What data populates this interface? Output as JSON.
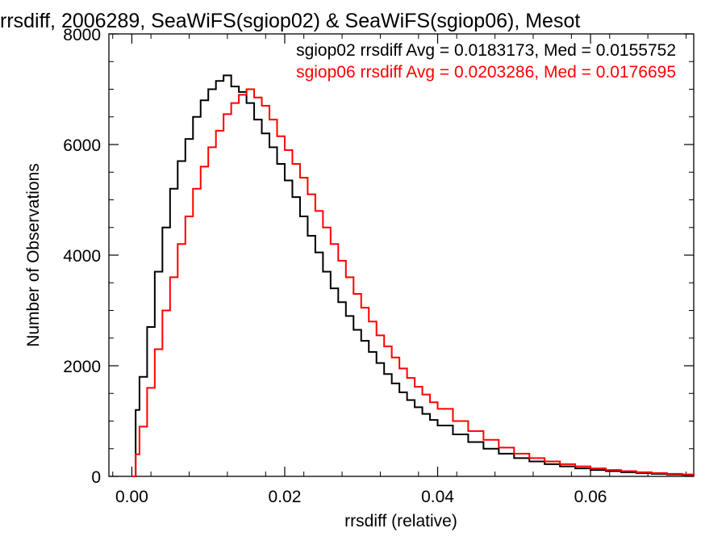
{
  "chart_data": {
    "type": "histogram-step",
    "title": "rrsdiff, 2006289, SeaWiFS(sgiop02) & SeaWiFS(sgiop06), Mesot",
    "xlabel": "rrsdiff (relative)",
    "ylabel": "Number of Observations",
    "xlim": [
      -0.003,
      0.0735
    ],
    "ylim": [
      0,
      8000
    ],
    "x_ticks": [
      0.0,
      0.02,
      0.04,
      0.06
    ],
    "x_tick_labels": [
      "0.00",
      "0.02",
      "0.04",
      "0.06"
    ],
    "y_ticks": [
      0,
      2000,
      4000,
      6000,
      8000
    ],
    "y_tick_labels": [
      "0",
      "2000",
      "4000",
      "6000",
      "8000"
    ],
    "grid": false,
    "legend_position": "top-right",
    "series": [
      {
        "name": "sgiop02",
        "color": "#000000",
        "annotation": "sgiop02 rrsdiff Avg = 0.0183173, Med = 0.0155752",
        "points": [
          [
            0.0,
            0
          ],
          [
            0.0005,
            1200
          ],
          [
            0.001,
            1800
          ],
          [
            0.002,
            2700
          ],
          [
            0.003,
            3700
          ],
          [
            0.004,
            4500
          ],
          [
            0.005,
            5200
          ],
          [
            0.006,
            5700
          ],
          [
            0.007,
            6100
          ],
          [
            0.008,
            6500
          ],
          [
            0.009,
            6800
          ],
          [
            0.01,
            7000
          ],
          [
            0.011,
            7150
          ],
          [
            0.012,
            7250
          ],
          [
            0.013,
            7050
          ],
          [
            0.014,
            6950
          ],
          [
            0.015,
            6750
          ],
          [
            0.016,
            6450
          ],
          [
            0.017,
            6200
          ],
          [
            0.018,
            5950
          ],
          [
            0.019,
            5650
          ],
          [
            0.02,
            5350
          ],
          [
            0.021,
            5050
          ],
          [
            0.022,
            4700
          ],
          [
            0.023,
            4350
          ],
          [
            0.024,
            4050
          ],
          [
            0.025,
            3700
          ],
          [
            0.026,
            3400
          ],
          [
            0.027,
            3150
          ],
          [
            0.028,
            2900
          ],
          [
            0.029,
            2650
          ],
          [
            0.03,
            2450
          ],
          [
            0.031,
            2250
          ],
          [
            0.032,
            2050
          ],
          [
            0.033,
            1850
          ],
          [
            0.034,
            1680
          ],
          [
            0.035,
            1520
          ],
          [
            0.036,
            1380
          ],
          [
            0.037,
            1250
          ],
          [
            0.038,
            1130
          ],
          [
            0.039,
            1020
          ],
          [
            0.04,
            920
          ],
          [
            0.042,
            760
          ],
          [
            0.044,
            620
          ],
          [
            0.046,
            500
          ],
          [
            0.048,
            410
          ],
          [
            0.05,
            330
          ],
          [
            0.052,
            270
          ],
          [
            0.054,
            220
          ],
          [
            0.056,
            180
          ],
          [
            0.058,
            145
          ],
          [
            0.06,
            115
          ],
          [
            0.062,
            95
          ],
          [
            0.064,
            75
          ],
          [
            0.066,
            60
          ],
          [
            0.068,
            45
          ],
          [
            0.07,
            35
          ],
          [
            0.072,
            28
          ],
          [
            0.0735,
            22
          ]
        ]
      },
      {
        "name": "sgiop06",
        "color": "#ff0000",
        "annotation": "sgiop06 rrsdiff Avg = 0.0203286, Med = 0.0176695",
        "points": [
          [
            0.0,
            0
          ],
          [
            0.0005,
            400
          ],
          [
            0.001,
            900
          ],
          [
            0.002,
            1600
          ],
          [
            0.003,
            2300
          ],
          [
            0.004,
            3000
          ],
          [
            0.005,
            3600
          ],
          [
            0.006,
            4200
          ],
          [
            0.007,
            4700
          ],
          [
            0.008,
            5200
          ],
          [
            0.009,
            5600
          ],
          [
            0.01,
            5950
          ],
          [
            0.011,
            6250
          ],
          [
            0.012,
            6550
          ],
          [
            0.013,
            6750
          ],
          [
            0.014,
            6900
          ],
          [
            0.015,
            7000
          ],
          [
            0.016,
            6850
          ],
          [
            0.017,
            6700
          ],
          [
            0.018,
            6450
          ],
          [
            0.019,
            6150
          ],
          [
            0.02,
            5900
          ],
          [
            0.021,
            5650
          ],
          [
            0.022,
            5400
          ],
          [
            0.023,
            5100
          ],
          [
            0.024,
            4800
          ],
          [
            0.025,
            4500
          ],
          [
            0.026,
            4200
          ],
          [
            0.027,
            3900
          ],
          [
            0.028,
            3600
          ],
          [
            0.029,
            3300
          ],
          [
            0.03,
            3050
          ],
          [
            0.031,
            2800
          ],
          [
            0.032,
            2550
          ],
          [
            0.033,
            2350
          ],
          [
            0.034,
            2150
          ],
          [
            0.035,
            1950
          ],
          [
            0.036,
            1780
          ],
          [
            0.037,
            1620
          ],
          [
            0.038,
            1480
          ],
          [
            0.039,
            1340
          ],
          [
            0.04,
            1220
          ],
          [
            0.042,
            1000
          ],
          [
            0.044,
            820
          ],
          [
            0.046,
            660
          ],
          [
            0.048,
            520
          ],
          [
            0.05,
            410
          ],
          [
            0.052,
            330
          ],
          [
            0.054,
            270
          ],
          [
            0.056,
            220
          ],
          [
            0.058,
            180
          ],
          [
            0.06,
            145
          ],
          [
            0.062,
            115
          ],
          [
            0.064,
            95
          ],
          [
            0.066,
            75
          ],
          [
            0.068,
            60
          ],
          [
            0.07,
            45
          ],
          [
            0.072,
            35
          ],
          [
            0.0735,
            28
          ]
        ]
      }
    ]
  }
}
